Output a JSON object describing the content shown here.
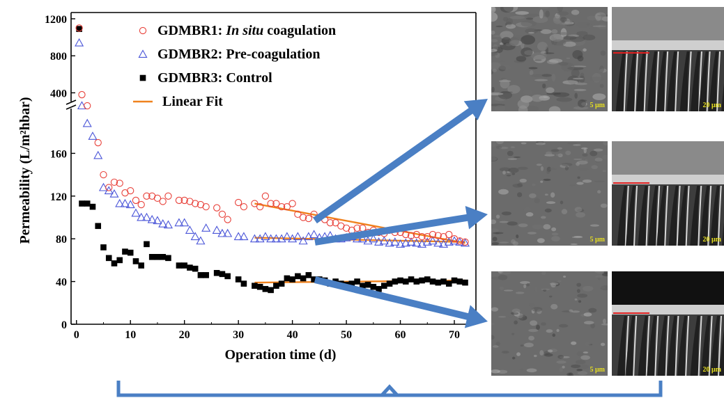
{
  "chart_data": {
    "type": "scatter",
    "title": "",
    "xlabel": "Operation time (d)",
    "ylabel": "Permeability",
    "ylabel_unit": "(L/m²hbar)",
    "xlim": [
      -1,
      74
    ],
    "ylim_lower": [
      0,
      200
    ],
    "ylim_upper": [
      200,
      1250
    ],
    "axis_break": 200,
    "x_ticks": [
      "0",
      "10",
      "20",
      "30",
      "40",
      "50",
      "60",
      "70"
    ],
    "y_ticks_lower": [
      "0",
      "40",
      "80",
      "120",
      "160"
    ],
    "y_ticks_upper": [
      "400",
      "800",
      "1200"
    ],
    "grid": false,
    "legend_position": "top",
    "series": [
      {
        "legend_prefix": "GDMBR1: ",
        "legend_italic": "In situ",
        "legend_suffix": " coagulation",
        "marker": "circle-open",
        "color": "#e8413a",
        "x": [
          0.5,
          1,
          2,
          4,
          5,
          6,
          7,
          8,
          9,
          10,
          11,
          12,
          13,
          14,
          15,
          16,
          17,
          19,
          20,
          21,
          22,
          23,
          24,
          26,
          27,
          28,
          30,
          31,
          33,
          34,
          35,
          36,
          37,
          38,
          39,
          40,
          41,
          42,
          43,
          44,
          45,
          46,
          47,
          48,
          49,
          50,
          51,
          52,
          53,
          54,
          55,
          56,
          57,
          58,
          59,
          60,
          61,
          62,
          63,
          64,
          65,
          66,
          67,
          68,
          69,
          70,
          71,
          72
        ],
        "y": [
          1100,
          380,
          260,
          170,
          140,
          128,
          133,
          132,
          123,
          125,
          116,
          112,
          120,
          120,
          118,
          115,
          120,
          116,
          116,
          115,
          113,
          112,
          110,
          109,
          103,
          98,
          114,
          110,
          113,
          110,
          120,
          113,
          113,
          110,
          110,
          113,
          103,
          100,
          99,
          103,
          100,
          98,
          95,
          95,
          92,
          90,
          88,
          90,
          90,
          86,
          88,
          86,
          85,
          88,
          86,
          86,
          84,
          83,
          84,
          82,
          82,
          84,
          83,
          82,
          84,
          80,
          78,
          77
        ]
      },
      {
        "legend": "GDMBR2: Pre-coagulation",
        "marker": "triangle-open",
        "color": "#4a55d8",
        "x": [
          0.5,
          1,
          2,
          3,
          4,
          5,
          6,
          7,
          8,
          9,
          10,
          11,
          12,
          13,
          14,
          15,
          16,
          17,
          19,
          20,
          21,
          22,
          23,
          24,
          26,
          27,
          28,
          30,
          31,
          33,
          34,
          35,
          36,
          37,
          38,
          39,
          40,
          41,
          42,
          43,
          44,
          45,
          46,
          47,
          48,
          49,
          50,
          51,
          52,
          53,
          54,
          55,
          56,
          57,
          58,
          59,
          60,
          61,
          62,
          63,
          64,
          65,
          66,
          67,
          68,
          69,
          70,
          71,
          72
        ],
        "y": [
          940,
          260,
          188,
          176,
          158,
          128,
          125,
          122,
          113,
          113,
          112,
          104,
          100,
          100,
          98,
          97,
          94,
          93,
          95,
          95,
          88,
          82,
          78,
          90,
          88,
          85,
          85,
          82,
          82,
          80,
          80,
          82,
          80,
          80,
          80,
          82,
          80,
          82,
          78,
          82,
          84,
          81,
          82,
          83,
          80,
          80,
          81,
          82,
          80,
          80,
          78,
          80,
          77,
          78,
          76,
          77,
          75,
          76,
          77,
          76,
          75,
          77,
          78,
          76,
          75,
          77,
          78,
          77,
          76
        ]
      },
      {
        "legend": "GDMBR3: Control",
        "marker": "square-filled",
        "color": "#000000",
        "x": [
          0.5,
          1,
          2,
          3,
          4,
          5,
          6,
          7,
          8,
          9,
          10,
          11,
          12,
          13,
          14,
          15,
          16,
          17,
          19,
          20,
          21,
          22,
          23,
          24,
          26,
          27,
          28,
          30,
          31,
          33,
          34,
          35,
          36,
          37,
          38,
          39,
          40,
          41,
          42,
          43,
          44,
          45,
          46,
          47,
          48,
          49,
          50,
          51,
          52,
          53,
          54,
          55,
          56,
          57,
          58,
          59,
          60,
          61,
          62,
          63,
          64,
          65,
          66,
          67,
          68,
          69,
          70,
          71,
          72
        ],
        "y": [
          1090,
          113,
          113,
          110,
          92,
          72,
          62,
          57,
          60,
          68,
          67,
          59,
          55,
          75,
          63,
          63,
          63,
          62,
          55,
          55,
          53,
          52,
          46,
          46,
          48,
          47,
          45,
          42,
          38,
          36,
          35,
          33,
          32,
          36,
          38,
          43,
          42,
          45,
          43,
          46,
          42,
          42,
          41,
          38,
          40,
          38,
          37,
          38,
          40,
          36,
          37,
          35,
          33,
          36,
          38,
          40,
          41,
          40,
          42,
          40,
          41,
          42,
          40,
          39,
          40,
          38,
          41,
          40,
          39
        ]
      },
      {
        "legend": "Linear Fit",
        "marker": "line",
        "color": "#f0821e"
      }
    ],
    "fit_lines": [
      {
        "x": [
          33,
          72
        ],
        "y": [
          113,
          76
        ]
      },
      {
        "x": [
          33,
          72
        ],
        "y": [
          81,
          77
        ]
      },
      {
        "x": [
          33,
          72
        ],
        "y": [
          39,
          41
        ]
      }
    ]
  },
  "arrow_color": "#4a7fc4",
  "micrographs": [
    {
      "surface_scale": "5 μm",
      "cross_scale": "20 μm"
    },
    {
      "surface_scale": "5 μm",
      "cross_scale": "20 μm"
    },
    {
      "surface_scale": "5 μm",
      "cross_scale": "20 μm"
    }
  ]
}
